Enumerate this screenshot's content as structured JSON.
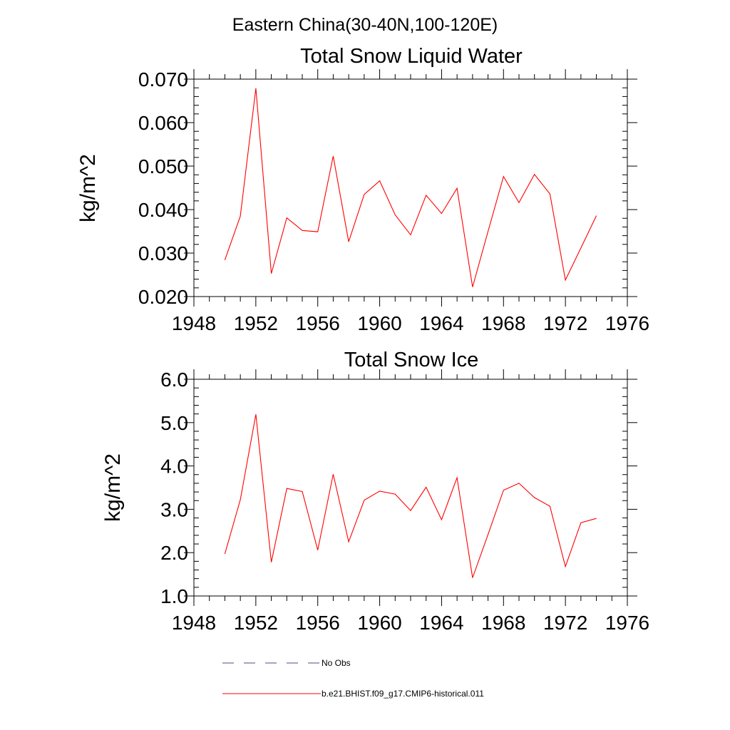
{
  "figure": {
    "suptitle": "Eastern China(30-40N,100-120E)"
  },
  "chart_data": [
    {
      "type": "line",
      "title": "Total Snow Liquid Water",
      "xlabel": "",
      "ylabel": "kg/m^2",
      "xlim": [
        1948,
        1976
      ],
      "ylim": [
        0.02,
        0.07
      ],
      "x_ticks": [
        "1948",
        "1952",
        "1956",
        "1960",
        "1964",
        "1968",
        "1972",
        "1976"
      ],
      "y_ticks": [
        "0.020",
        "0.030",
        "0.040",
        "0.050",
        "0.060",
        "0.070"
      ],
      "x": [
        1950,
        1951,
        1952,
        1953,
        1954,
        1955,
        1956,
        1957,
        1958,
        1959,
        1960,
        1961,
        1962,
        1963,
        1964,
        1965,
        1966,
        1967,
        1968,
        1969,
        1970,
        1971,
        1972,
        1973,
        1974
      ],
      "series": [
        {
          "name": "b.e21.BHIST.f09_g17.CMIP6-historical.011",
          "color": "#ff0000",
          "values": [
            0.0284,
            0.0385,
            0.0679,
            0.0253,
            0.0381,
            0.0352,
            0.0349,
            0.0523,
            0.0326,
            0.0435,
            0.0466,
            0.0388,
            0.0342,
            0.0433,
            0.0391,
            0.0449,
            0.0222,
            0.035,
            0.0476,
            0.0416,
            0.0481,
            0.0436,
            0.0238,
            0.0312,
            0.0386
          ]
        }
      ]
    },
    {
      "type": "line",
      "title": "Total Snow Ice",
      "xlabel": "",
      "ylabel": "kg/m^2",
      "xlim": [
        1948,
        1976
      ],
      "ylim": [
        1.0,
        6.0
      ],
      "x_ticks": [
        "1948",
        "1952",
        "1956",
        "1960",
        "1964",
        "1968",
        "1972",
        "1976"
      ],
      "y_ticks": [
        "1.0",
        "2.0",
        "3.0",
        "4.0",
        "5.0",
        "6.0"
      ],
      "x": [
        1950,
        1951,
        1952,
        1953,
        1954,
        1955,
        1956,
        1957,
        1958,
        1959,
        1960,
        1961,
        1962,
        1963,
        1964,
        1965,
        1966,
        1967,
        1968,
        1969,
        1970,
        1971,
        1972,
        1973,
        1974
      ],
      "series": [
        {
          "name": "b.e21.BHIST.f09_g17.CMIP6-historical.011",
          "color": "#ff0000",
          "values": [
            1.97,
            3.22,
            5.19,
            1.78,
            3.48,
            3.41,
            2.06,
            3.81,
            2.25,
            3.21,
            3.42,
            3.35,
            2.97,
            3.51,
            2.76,
            3.73,
            1.42,
            2.42,
            3.44,
            3.6,
            3.27,
            3.07,
            1.68,
            2.69,
            2.79
          ]
        }
      ]
    }
  ],
  "legend": [
    {
      "label": "No Obs",
      "style": "dashed",
      "color": "#4a4a8a"
    },
    {
      "label": "b.e21.BHIST.f09_g17.CMIP6-historical.011",
      "style": "solid",
      "color": "#ff0000"
    }
  ]
}
